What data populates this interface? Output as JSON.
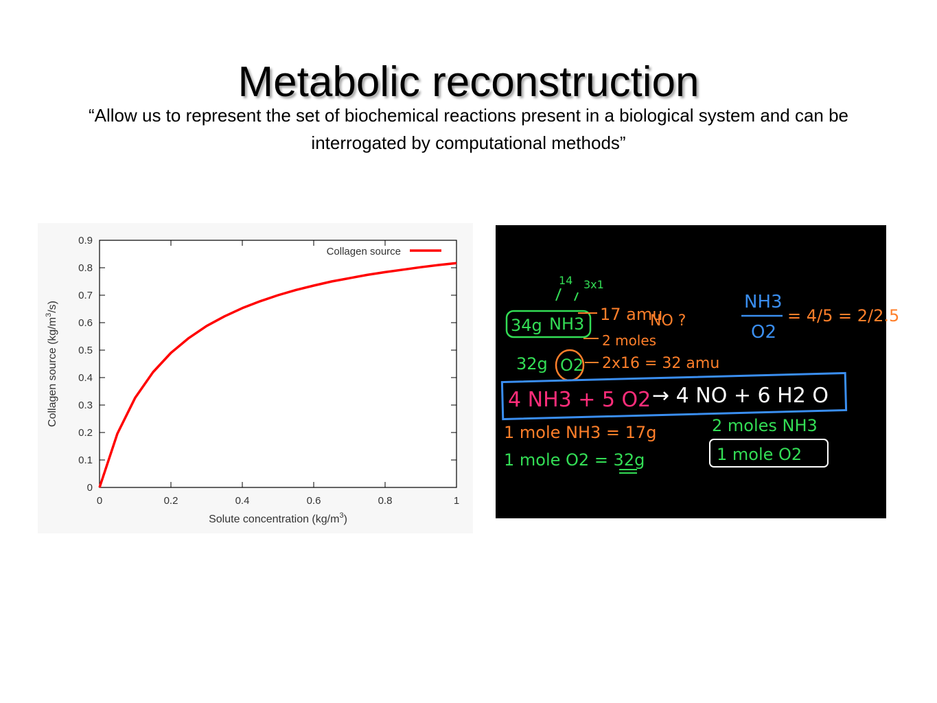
{
  "slide": {
    "title": "Metabolic reconstruction",
    "quote": "“Allow us to represent the set of biochemical reactions present in a biological system and can be interrogated by computational methods”"
  },
  "chart_data": {
    "type": "line",
    "xlabel": "Solute concentration (kg/m",
    "xlabel_sup": "3",
    "xlabel_end": ")",
    "ylabel": "Collagen source (kg/m",
    "ylabel_sup": "3",
    "ylabel_end": "/s)",
    "xlim": [
      0,
      1
    ],
    "ylim": [
      0,
      0.9
    ],
    "xticks": [
      "0",
      "0.2",
      "0.4",
      "0.6",
      "0.8",
      "1"
    ],
    "yticks": [
      "0",
      "0.1",
      "0.2",
      "0.3",
      "0.4",
      "0.5",
      "0.6",
      "0.7",
      "0.8",
      "0.9"
    ],
    "legend": "top-right",
    "grid": false,
    "series": [
      {
        "name": "Collagen source",
        "color": "#ff0000",
        "x": [
          0,
          0.05,
          0.1,
          0.15,
          0.2,
          0.25,
          0.3,
          0.35,
          0.4,
          0.45,
          0.5,
          0.55,
          0.6,
          0.65,
          0.7,
          0.75,
          0.8,
          0.85,
          0.9,
          0.95,
          1.0
        ],
        "y": [
          0,
          0.196,
          0.327,
          0.42,
          0.49,
          0.544,
          0.588,
          0.623,
          0.653,
          0.678,
          0.7,
          0.719,
          0.735,
          0.75,
          0.762,
          0.774,
          0.784,
          0.793,
          0.802,
          0.81,
          0.817
        ]
      }
    ]
  },
  "board": {
    "background": "#000000",
    "lines": [
      {
        "text": "14",
        "color": "#33dd55"
      },
      {
        "text": "3x1",
        "color": "#33dd55"
      },
      {
        "text": "34g",
        "color": "#33dd55"
      },
      {
        "text": "NH3",
        "color": "#33dd55"
      },
      {
        "text": "17 amu",
        "color": "#ff7f2a"
      },
      {
        "text": "NO ?",
        "color": "#ff7f2a"
      },
      {
        "text": "2 moles",
        "color": "#ff7f2a"
      },
      {
        "text": "32g",
        "color": "#33dd55"
      },
      {
        "text": "O2",
        "color": "#33dd55"
      },
      {
        "text": "2x16 = 32 amu",
        "color": "#ff7f2a"
      },
      {
        "text": "NH3",
        "color": "#3a8ef0"
      },
      {
        "text": "O2",
        "color": "#3a8ef0"
      },
      {
        "text": "= 4/5 = 2/2.5",
        "color": "#ff7f2a"
      },
      {
        "text": "4 NH3 + 5 O2",
        "color": "#ff2d7a"
      },
      {
        "text": "→ 4 NO + 6 H2 O",
        "color": "#ffffff"
      },
      {
        "text": "1 mole NH3 = 17g",
        "color": "#ff7f2a"
      },
      {
        "text": "1 mole O2 = 32g",
        "color": "#33dd55"
      },
      {
        "text": "2 moles NH3",
        "color": "#33dd55"
      },
      {
        "text": "1 mole O2",
        "color": "#33dd55"
      }
    ]
  }
}
